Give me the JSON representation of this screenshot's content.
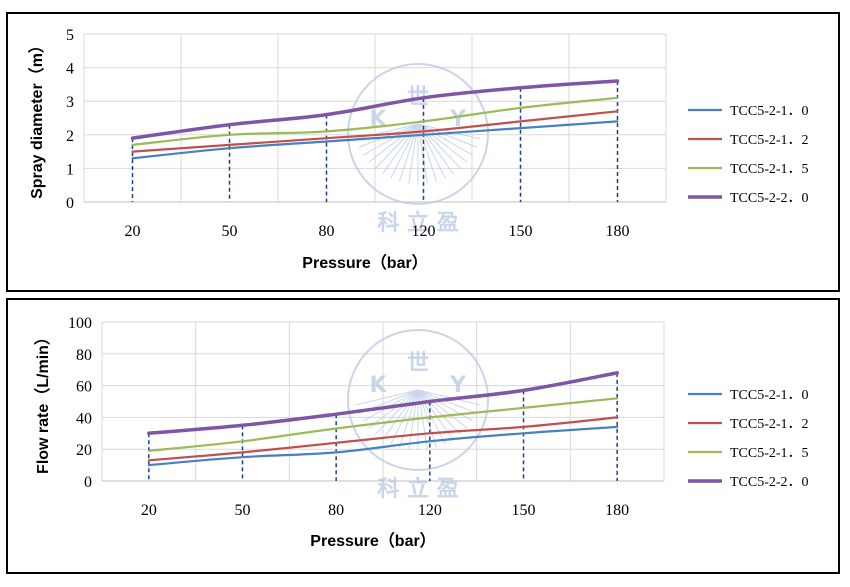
{
  "colors": {
    "TCC5-2-1.0": "#4a7fc1",
    "TCC5-2-1.2": "#c0504d",
    "TCC5-2-1.5": "#9bbb59",
    "TCC5-2-2.0": "#7f55a5",
    "grid": "#d9d9d9",
    "dashed": "#1f3e8c",
    "watermark": "#b9c8e6"
  },
  "watermark": {
    "letters": [
      "K",
      "Y"
    ],
    "top_char": "世",
    "bottom_text": "科 立 盈"
  },
  "chart_data": [
    {
      "type": "line",
      "title": "",
      "xlabel": "Pressure（bar）",
      "ylabel": "Spray diameter（m）",
      "categories": [
        "20",
        "50",
        "80",
        "120",
        "150",
        "180"
      ],
      "ylim": [
        0,
        5
      ],
      "yticks": [
        0,
        1,
        2,
        3,
        4,
        5
      ],
      "grid": true,
      "legend_position": "right",
      "series": [
        {
          "name": "TCC5-2-1.0",
          "values": [
            1.3,
            1.6,
            1.8,
            2.0,
            2.2,
            2.4
          ]
        },
        {
          "name": "TCC5-2-1.2",
          "values": [
            1.5,
            1.7,
            1.9,
            2.1,
            2.4,
            2.7
          ]
        },
        {
          "name": "TCC5-2-1.5",
          "values": [
            1.7,
            2.0,
            2.1,
            2.4,
            2.8,
            3.1
          ]
        },
        {
          "name": "TCC5-2-2.0",
          "values": [
            1.9,
            2.3,
            2.6,
            3.1,
            3.4,
            3.6
          ]
        }
      ],
      "dashed_reference": "TCC5-2-2.0"
    },
    {
      "type": "line",
      "title": "",
      "xlabel": "Pressure（bar）",
      "ylabel": "Flow rate（L/min）",
      "categories": [
        "20",
        "50",
        "80",
        "120",
        "150",
        "180"
      ],
      "ylim": [
        0,
        100
      ],
      "yticks": [
        0,
        20,
        40,
        60,
        80,
        100
      ],
      "grid": true,
      "legend_position": "right",
      "series": [
        {
          "name": "TCC5-2-1.0",
          "values": [
            10,
            15,
            18,
            25,
            30,
            34
          ]
        },
        {
          "name": "TCC5-2-1.2",
          "values": [
            13,
            18,
            24,
            30,
            34,
            40
          ]
        },
        {
          "name": "TCC5-2-1.5",
          "values": [
            19,
            25,
            33,
            40,
            46,
            52
          ]
        },
        {
          "name": "TCC5-2-2.0",
          "values": [
            30,
            35,
            42,
            50,
            57,
            68
          ]
        }
      ],
      "dashed_reference": "TCC5-2-2.0"
    }
  ],
  "legend": [
    {
      "label": "TCC5-2-1．0",
      "series": "TCC5-2-1.0"
    },
    {
      "label": "TCC5-2-1．2",
      "series": "TCC5-2-1.2"
    },
    {
      "label": "TCC5-2-1．5",
      "series": "TCC5-2-1.5"
    },
    {
      "label": "TCC5-2-2．0",
      "series": "TCC5-2-2.0"
    }
  ]
}
